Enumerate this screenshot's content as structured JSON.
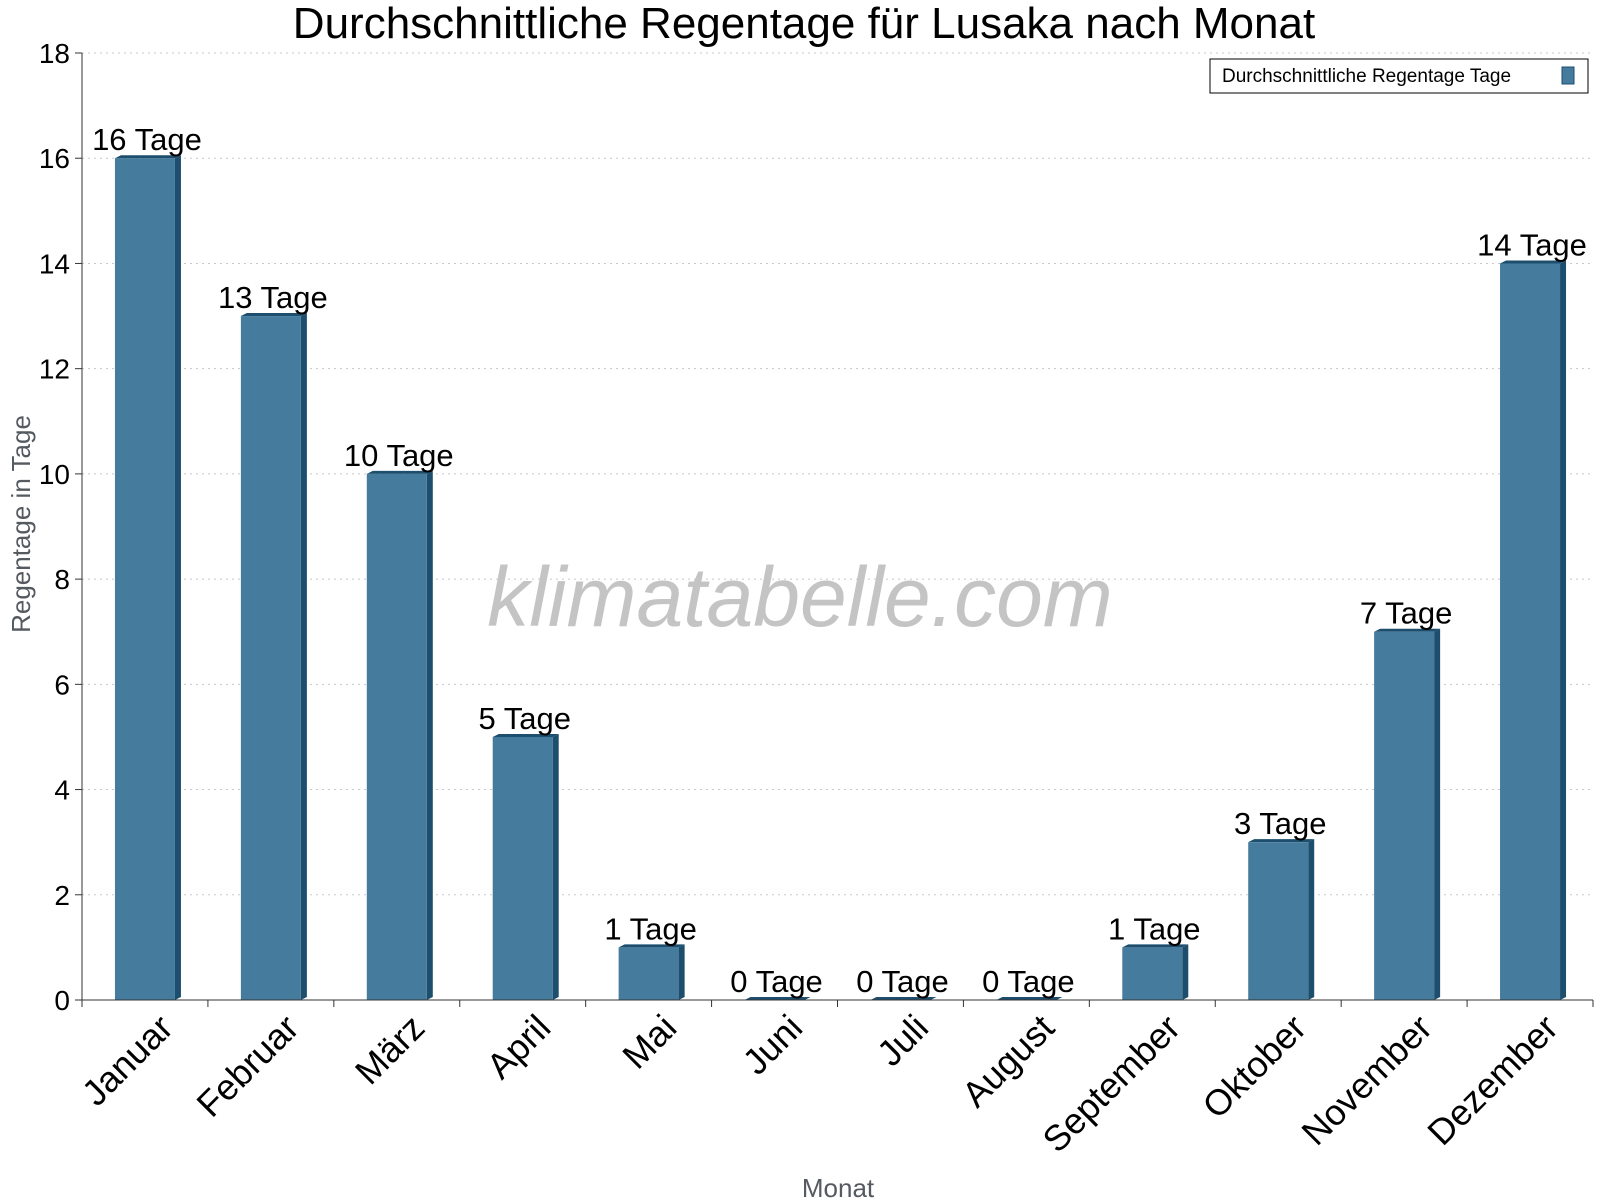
{
  "chart_data": {
    "type": "bar",
    "title": "Durchschnittliche Regentage für Lusaka nach Monat",
    "xlabel": "Monat",
    "ylabel": "Regentage in Tage",
    "ylim": [
      0,
      18
    ],
    "y_ticks": [
      0,
      2,
      4,
      6,
      8,
      10,
      12,
      14,
      16,
      18
    ],
    "grid": true,
    "legend_position": "top-right",
    "categories": [
      "Januar",
      "Februar",
      "März",
      "April",
      "Mai",
      "Juni",
      "Juli",
      "August",
      "September",
      "Oktober",
      "November",
      "Dezember"
    ],
    "series": [
      {
        "name": "Durchschnittliche Regentage Tage",
        "values": [
          16,
          13,
          10,
          5,
          1,
          0,
          0,
          0,
          1,
          3,
          7,
          14
        ],
        "labels": [
          "16 Tage",
          "13 Tage",
          "10 Tage",
          "5 Tage",
          "1 Tage",
          "0 Tage",
          "0 Tage",
          "0 Tage",
          "1 Tage",
          "3 Tage",
          "7 Tage",
          "14 Tage"
        ],
        "color": "#457b9d",
        "side_color": "#1d4e6e"
      }
    ],
    "watermark": "klimatabelle.com"
  }
}
